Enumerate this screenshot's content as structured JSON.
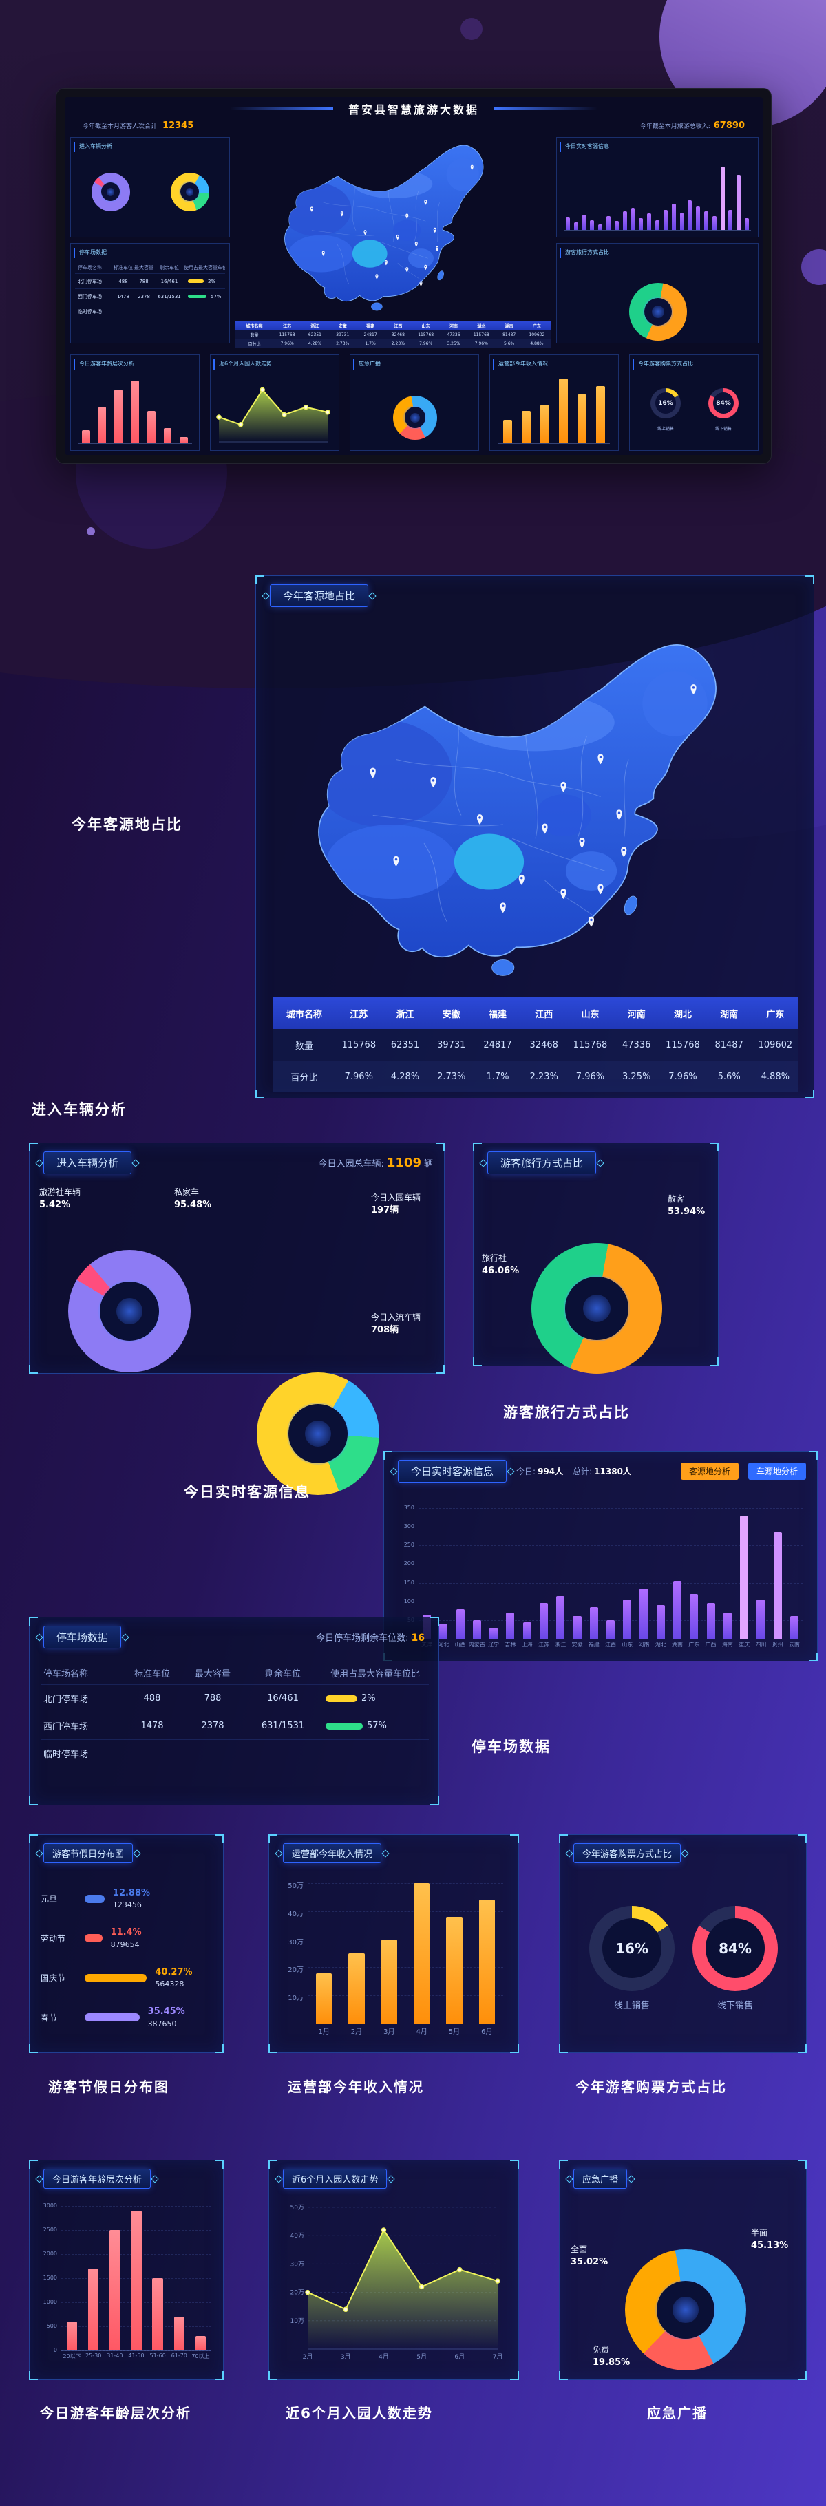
{
  "hero": {
    "title": "普安县智慧旅游大数据",
    "stat_left_label": "今年截至本月游客人次合计:",
    "stat_left_value": "12345",
    "stat_right_label": "今年截至本月旅游总收入:",
    "stat_right_value": "67890"
  },
  "sections": {
    "source_map": {
      "label": "今年客源地占比",
      "panel_title": "今年客源地占比"
    },
    "vehicle": {
      "label": "进入车辆分析",
      "panel_title": "进入车辆分析",
      "total_label": "今日入园总车辆:",
      "total_value": "1109",
      "total_unit": "辆",
      "callout_agency": "旅游社车辆",
      "callout_agency_pct": "5.42%",
      "callout_private": "私家车",
      "callout_private_pct": "95.48%",
      "callout_enter": "今日入园车辆",
      "callout_enter_value": "197辆",
      "callout_flow": "今日入流车辆",
      "callout_flow_value": "708辆"
    },
    "travel": {
      "label": "游客旅行方式占比",
      "panel_title": "游客旅行方式占比",
      "callout_individual": "散客",
      "callout_individual_pct": "53.94%",
      "callout_agency": "旅行社",
      "callout_agency_pct": "46.06%"
    },
    "realtime": {
      "label": "今日实时客源信息",
      "panel_title": "今日实时客源信息",
      "today_label": "今日:",
      "today_value": "994人",
      "total_label": "总计:",
      "total_value": "11380人",
      "btn_source": "客源地分析",
      "btn_vehicle": "车源地分析"
    },
    "parking": {
      "label": "停车场数据",
      "panel_title": "停车场数据",
      "subtitle_label": "今日停车场剩余车位数:",
      "subtitle_value": "16"
    },
    "holiday": {
      "label": "游客节假日分布图",
      "panel_title": "游客节假日分布图"
    },
    "revenue": {
      "label": "运营部今年收入情况",
      "panel_title": "运营部今年收入情况"
    },
    "ticket": {
      "label": "今年游客购票方式占比",
      "panel_title": "今年游客购票方式占比"
    },
    "age": {
      "label": "今日游客年龄层次分析",
      "panel_title": "今日游客年龄层次分析"
    },
    "trend": {
      "label": "近6个月入园人数走势",
      "panel_title": "近6个月入园人数走势"
    },
    "broadcast": {
      "label": "应急广播",
      "panel_title": "应急广播",
      "callout_half": "半面",
      "callout_half_pct": "45.13%",
      "callout_full": "全面",
      "callout_full_pct": "35.02%",
      "callout_free": "免费",
      "callout_free_pct": "19.85%"
    }
  },
  "chart_data": [
    {
      "id": "source_table",
      "type": "table",
      "title": "今年客源地占比",
      "rows": [
        {
          "label": "城市名称",
          "header": true,
          "values": [
            "江苏",
            "浙江",
            "安徽",
            "福建",
            "江西",
            "山东",
            "河南",
            "湖北",
            "湖南",
            "广东"
          ]
        },
        {
          "label": "数量",
          "header": false,
          "values": [
            "115768",
            "62351",
            "39731",
            "24817",
            "32468",
            "115768",
            "47336",
            "115768",
            "81487",
            "109602"
          ]
        },
        {
          "label": "百分比",
          "header": false,
          "values": [
            "7.96%",
            "4.28%",
            "2.73%",
            "1.7%",
            "2.23%",
            "7.96%",
            "3.25%",
            "7.96%",
            "5.6%",
            "4.88%"
          ]
        }
      ]
    },
    {
      "id": "vehicle_private",
      "type": "donut",
      "title": "进入车辆分析-车辆类型",
      "from": -40,
      "slices": [
        {
          "label": "私家车",
          "pct": "95.48%",
          "value": 95.48,
          "color": "#8d7bf4"
        },
        {
          "label": "旅游社车辆",
          "pct": "5.42%",
          "value": 5.42,
          "color": "#ff4d7d"
        }
      ]
    },
    {
      "id": "vehicle_flow",
      "type": "donut",
      "title": "进入车辆分析-今日车辆",
      "from": 160,
      "slices": [
        {
          "label": "今日入流车辆",
          "pct": "708辆",
          "value": 708,
          "color": "#ffd32a"
        },
        {
          "label": "今日入园车辆",
          "pct": "197辆",
          "value": 197,
          "color": "#38b6ff"
        },
        {
          "label": "",
          "pct": "",
          "value": 204,
          "color": "#2ede8a"
        }
      ]
    },
    {
      "id": "travel_mode",
      "type": "donut",
      "title": "游客旅行方式占比",
      "from": 10,
      "slices": [
        {
          "label": "散客",
          "pct": "53.94%",
          "value": 53.94,
          "color": "#ff9f1a"
        },
        {
          "label": "旅行社",
          "pct": "46.06%",
          "value": 46.06,
          "color": "#1fd08a"
        }
      ]
    },
    {
      "id": "realtime_bars",
      "type": "bar",
      "title": "今日实时客源信息",
      "categories": [
        "天津",
        "河北",
        "山西",
        "内蒙古",
        "辽宁",
        "吉林",
        "上海",
        "江苏",
        "浙江",
        "安徽",
        "福建",
        "江西",
        "山东",
        "河南",
        "湖北",
        "湖南",
        "广东",
        "广西",
        "海南",
        "重庆",
        "四川",
        "贵州",
        "云南"
      ],
      "values": [
        65,
        40,
        80,
        50,
        30,
        70,
        45,
        95,
        115,
        60,
        85,
        50,
        105,
        135,
        90,
        155,
        120,
        95,
        70,
        330,
        105,
        285,
        60
      ],
      "ylim": [
        0,
        350
      ],
      "ytick_vals": [
        350,
        300,
        250,
        200,
        150,
        100,
        50,
        0
      ],
      "ytick_labels": [
        "350",
        "300",
        "250",
        "200",
        "150",
        "100",
        "50",
        "0"
      ],
      "color": [
        "#b06dff",
        "#6a48e8"
      ],
      "highlight": {
        "19": "#e2a5ff",
        "21": "#d092ff"
      }
    },
    {
      "id": "parking_table",
      "type": "table",
      "title": "停车场数据",
      "headers": [
        "停车场名称",
        "标准车位",
        "最大容量",
        "剩余车位",
        "使用占最大容量车位比"
      ],
      "rows": [
        {
          "name": "北门停车场",
          "standard": "488",
          "capacity": "788",
          "remaining": "16/461",
          "usage_pct": "2%",
          "usage_bar": 46,
          "usage_color": "#ffd32a"
        },
        {
          "name": "西门停车场",
          "standard": "1478",
          "capacity": "2378",
          "remaining": "631/1531",
          "usage_pct": "57%",
          "usage_bar": 54,
          "usage_color": "#2ede8a"
        },
        {
          "name": "临时停车场",
          "standard": "",
          "capacity": "",
          "remaining": "",
          "usage_pct": "",
          "usage_bar": 0,
          "usage_color": ""
        }
      ]
    },
    {
      "id": "holiday",
      "type": "hbar",
      "title": "游客节假日分布图",
      "items": [
        {
          "label": "元旦",
          "pct": "12.88%",
          "count": "123456",
          "value": 12.88,
          "color": "#4b7bec"
        },
        {
          "label": "劳动节",
          "pct": "11.4%",
          "count": "879654",
          "value": 11.4,
          "color": "#ff5e57"
        },
        {
          "label": "国庆节",
          "pct": "40.27%",
          "count": "564328",
          "value": 40.27,
          "color": "#ffa801"
        },
        {
          "label": "春节",
          "pct": "35.45%",
          "count": "387650",
          "value": 35.45,
          "color": "#9c88ff"
        }
      ]
    },
    {
      "id": "revenue",
      "type": "bar",
      "title": "运营部今年收入情况",
      "categories": [
        "1月",
        "2月",
        "3月",
        "4月",
        "5月",
        "6月"
      ],
      "values": [
        18,
        25,
        30,
        50,
        38,
        44
      ],
      "unit": "万",
      "ylim": [
        0,
        50
      ],
      "ytick_vals": [
        50,
        40,
        30,
        20,
        10
      ],
      "ytick_labels": [
        "50万",
        "40万",
        "30万",
        "20万",
        "10万"
      ],
      "color": [
        "#ffc14d",
        "#ff8f0a"
      ]
    },
    {
      "id": "ticket",
      "type": "gauges",
      "title": "今年游客购票方式占比",
      "items": [
        {
          "pct": 16,
          "pct_text": "16%",
          "label": "线上销售",
          "color": "#ffd32a"
        },
        {
          "pct": 84,
          "pct_text": "84%",
          "label": "线下销售",
          "color": "#ff4d6b"
        }
      ]
    },
    {
      "id": "age",
      "type": "bar",
      "title": "今日游客年龄层次分析",
      "categories": [
        "20以下",
        "25-30",
        "31-40",
        "41-50",
        "51-60",
        "61-70",
        "70以上"
      ],
      "values": [
        600,
        1700,
        2500,
        2900,
        1500,
        700,
        300
      ],
      "ylim": [
        0,
        3000
      ],
      "ytick_vals": [
        3000,
        2500,
        2000,
        1500,
        1000,
        500,
        0
      ],
      "ytick_labels": [
        "3000",
        "2500",
        "2000",
        "1500",
        "1000",
        "500",
        "0"
      ],
      "color": [
        "#ff8d96",
        "#ff5864"
      ]
    },
    {
      "id": "trend",
      "type": "area",
      "title": "近6个月入园人数走势",
      "categories": [
        "2月",
        "3月",
        "4月",
        "5月",
        "6月",
        "7月"
      ],
      "values": [
        20,
        14,
        42,
        22,
        28,
        24
      ],
      "unit": "万",
      "ylim": [
        0,
        50
      ],
      "ytick_vals": [
        50,
        40,
        30,
        20,
        10
      ],
      "ytick_labels": [
        "50万",
        "40万",
        "30万",
        "20万",
        "10万"
      ],
      "line_color": "#eef25a",
      "fill_from": "#c0e84e"
    },
    {
      "id": "broadcast",
      "type": "donut",
      "title": "应急广播",
      "from": -10,
      "slices": [
        {
          "label": "半面",
          "pct": "45.13%",
          "value": 45.13,
          "color": "#38a9f5"
        },
        {
          "label": "免费",
          "pct": "19.85%",
          "value": 19.85,
          "color": "#ff5e57"
        },
        {
          "label": "全面",
          "pct": "35.02%",
          "value": 35.02,
          "color": "#ffa801"
        }
      ]
    }
  ]
}
